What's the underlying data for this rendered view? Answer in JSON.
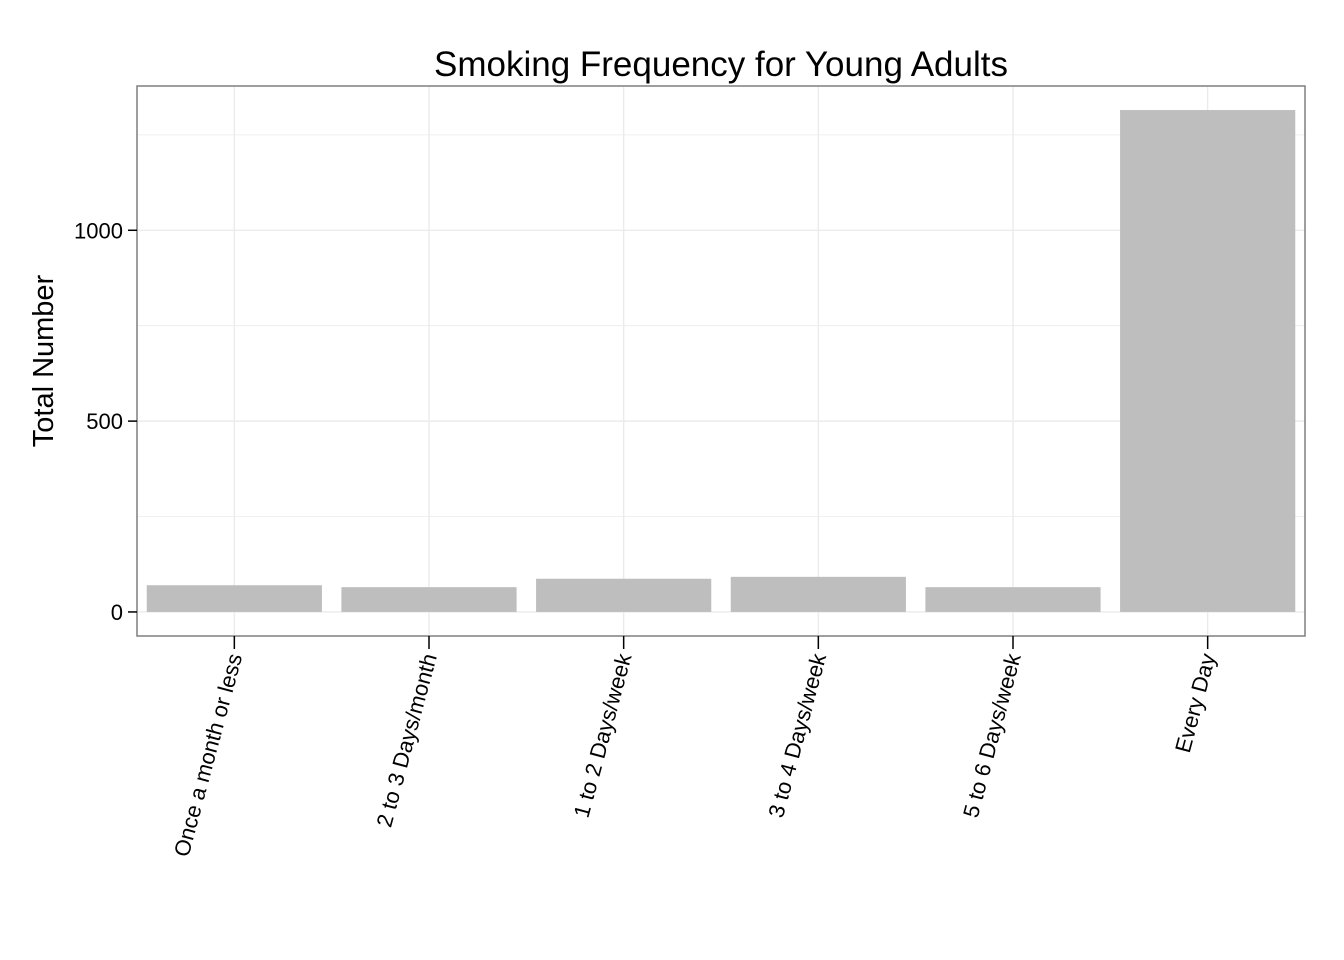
{
  "chart_data": {
    "type": "bar",
    "title": "Smoking Frequency for Young Adults",
    "xlabel": "",
    "ylabel": "Total Number",
    "categories": [
      "Once a month or less",
      "2 to 3 Days/month",
      "1 to 2 Days/week",
      "3 to 4 Days/week",
      "5 to 6 Days/week",
      "Every Day"
    ],
    "values": [
      70,
      65,
      87,
      92,
      65,
      1315
    ],
    "ylim": [
      -63,
      1378
    ],
    "yticks": [
      0,
      500,
      1000
    ],
    "ytick_labels": [
      "0",
      "500",
      "1000"
    ],
    "grid": true,
    "legend": "none",
    "colors": {
      "bar": "#bebebe",
      "grid": "#ebebeb",
      "border": "#7f7f7f",
      "background": "#ffffff"
    }
  }
}
